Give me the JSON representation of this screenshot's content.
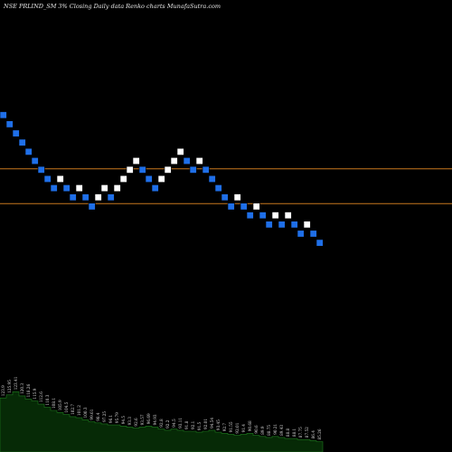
{
  "chart_data": {
    "type": "renko",
    "title": "NSE PRLIND_SM 3% Closing Daily data Renko charts MunafaSutra.com",
    "colors": {
      "background": "#000000",
      "up_brick": "#ffffff",
      "down_brick": "#1f6fe8",
      "brick_border": "#000000",
      "level_line": "#c8781e",
      "volume_fill": "#062a06",
      "volume_outline": "#1e7a1e"
    },
    "price_range": [
      60,
      140
    ],
    "levels": [
      109.5,
      98.5
    ],
    "bricks": [
      {
        "dir": "down",
        "close": 126.5
      },
      {
        "dir": "down",
        "close": 123.6
      },
      {
        "dir": "down",
        "close": 120.7
      },
      {
        "dir": "down",
        "close": 117.8
      },
      {
        "dir": "down",
        "close": 114.9
      },
      {
        "dir": "down",
        "close": 112.0
      },
      {
        "dir": "down",
        "close": 109.2
      },
      {
        "dir": "down",
        "close": 106.3
      },
      {
        "dir": "down",
        "close": 103.4
      },
      {
        "dir": "up",
        "close": 106.3
      },
      {
        "dir": "down",
        "close": 103.4
      },
      {
        "dir": "down",
        "close": 100.5
      },
      {
        "dir": "up",
        "close": 103.4
      },
      {
        "dir": "down",
        "close": 100.5
      },
      {
        "dir": "down",
        "close": 97.6
      },
      {
        "dir": "up",
        "close": 100.5
      },
      {
        "dir": "up",
        "close": 103.4
      },
      {
        "dir": "down",
        "close": 100.5
      },
      {
        "dir": "up",
        "close": 103.4
      },
      {
        "dir": "up",
        "close": 106.3
      },
      {
        "dir": "up",
        "close": 109.2
      },
      {
        "dir": "up",
        "close": 112.0
      },
      {
        "dir": "down",
        "close": 109.2
      },
      {
        "dir": "down",
        "close": 106.3
      },
      {
        "dir": "down",
        "close": 103.4
      },
      {
        "dir": "up",
        "close": 106.3
      },
      {
        "dir": "up",
        "close": 109.2
      },
      {
        "dir": "up",
        "close": 112.0
      },
      {
        "dir": "up",
        "close": 114.9
      },
      {
        "dir": "down",
        "close": 112.0
      },
      {
        "dir": "down",
        "close": 109.2
      },
      {
        "dir": "up",
        "close": 112.0
      },
      {
        "dir": "down",
        "close": 109.2
      },
      {
        "dir": "down",
        "close": 106.3
      },
      {
        "dir": "down",
        "close": 103.4
      },
      {
        "dir": "down",
        "close": 100.5
      },
      {
        "dir": "down",
        "close": 97.6
      },
      {
        "dir": "up",
        "close": 100.5
      },
      {
        "dir": "down",
        "close": 97.6
      },
      {
        "dir": "down",
        "close": 94.8
      },
      {
        "dir": "up",
        "close": 97.6
      },
      {
        "dir": "down",
        "close": 94.8
      },
      {
        "dir": "down",
        "close": 91.9
      },
      {
        "dir": "up",
        "close": 94.8
      },
      {
        "dir": "down",
        "close": 91.9
      },
      {
        "dir": "up",
        "close": 94.8
      },
      {
        "dir": "down",
        "close": 91.9
      },
      {
        "dir": "down",
        "close": 89.0
      },
      {
        "dir": "up",
        "close": 91.9
      },
      {
        "dir": "down",
        "close": 89.0
      },
      {
        "dir": "down",
        "close": 86.1
      }
    ],
    "volume": {
      "values": [
        52,
        55,
        58,
        54,
        51,
        49,
        46,
        43,
        40,
        38,
        36,
        34,
        33,
        31,
        29,
        28,
        27,
        26,
        26,
        25,
        24,
        23,
        24,
        25,
        24,
        22,
        21,
        22,
        21,
        20,
        20,
        19,
        20,
        21,
        19,
        18,
        17,
        16,
        17,
        18,
        16,
        15,
        14,
        15,
        14,
        13,
        13,
        12,
        12,
        11,
        10
      ],
      "labels": [
        "123.9",
        "125.95",
        "123.41",
        "120.3",
        "118.26",
        "115.9",
        "112.6",
        "110.3",
        "108.1",
        "105.9",
        "104.5",
        "102.7",
        "101.2",
        "100.3",
        "99.61",
        "98.4",
        "97.25",
        "96.1",
        "95.79",
        "94.5",
        "93.3",
        "92.6",
        "93.57",
        "96.69",
        "94.93",
        "92.8",
        "92.2",
        "94.5",
        "93.11",
        "91.8",
        "92.1",
        "91.5",
        "92.01",
        "94.54",
        "93.45",
        "92.7",
        "91.55",
        "92.01",
        "91.4",
        "90.68",
        "90.6",
        "89.9",
        "88.75",
        "90.21",
        "89.43",
        "88.8",
        "88.1",
        "87.75",
        "87.52",
        "86.4",
        "85.26"
      ]
    }
  }
}
